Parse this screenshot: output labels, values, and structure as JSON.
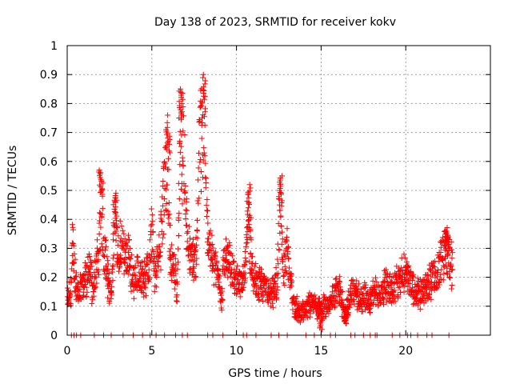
{
  "chart_data": {
    "type": "scatter",
    "title": "Day 138 of 2023, SRMTID for receiver kokv",
    "xlabel": "GPS time / hours",
    "ylabel": "SRMTID / TECUs",
    "xlim": [
      0,
      25
    ],
    "ylim": [
      0,
      1
    ],
    "grid": true,
    "marker": "+",
    "marker_color": "#ff0000",
    "x_ticks": [
      0,
      5,
      10,
      15,
      20
    ],
    "y_ticks": [
      0,
      0.1,
      0.2,
      0.3,
      0.4,
      0.5,
      0.6,
      0.7,
      0.8,
      0.9,
      1
    ],
    "y_tick_labels": [
      "0",
      "0.1",
      "0.2",
      "0.3",
      "0.4",
      "0.5",
      "0.6",
      "0.7",
      "0.8",
      "0.9",
      "1"
    ],
    "series": [
      {
        "name": "SRMTID",
        "profile": [
          [
            0.0,
            0.13
          ],
          [
            0.2,
            0.14
          ],
          [
            0.3,
            0.32
          ],
          [
            0.45,
            0.22
          ],
          [
            0.6,
            0.15
          ],
          [
            0.9,
            0.17
          ],
          [
            1.1,
            0.2
          ],
          [
            1.3,
            0.24
          ],
          [
            1.5,
            0.16
          ],
          [
            1.7,
            0.22
          ],
          [
            1.85,
            0.3
          ],
          [
            2.0,
            0.48
          ],
          [
            2.2,
            0.3
          ],
          [
            2.4,
            0.2
          ],
          [
            2.6,
            0.13
          ],
          [
            2.8,
            0.4
          ],
          [
            3.0,
            0.32
          ],
          [
            3.3,
            0.3
          ],
          [
            3.6,
            0.27
          ],
          [
            3.9,
            0.2
          ],
          [
            4.2,
            0.22
          ],
          [
            4.5,
            0.19
          ],
          [
            4.8,
            0.24
          ],
          [
            5.0,
            0.36
          ],
          [
            5.2,
            0.2
          ],
          [
            5.4,
            0.27
          ],
          [
            5.6,
            0.4
          ],
          [
            5.8,
            0.55
          ],
          [
            5.95,
            0.63
          ],
          [
            6.1,
            0.28
          ],
          [
            6.3,
            0.25
          ],
          [
            6.5,
            0.16
          ],
          [
            6.7,
            0.75
          ],
          [
            6.9,
            0.6
          ],
          [
            7.1,
            0.35
          ],
          [
            7.3,
            0.29
          ],
          [
            7.6,
            0.25
          ],
          [
            7.8,
            0.62
          ],
          [
            8.05,
            0.75
          ],
          [
            8.3,
            0.32
          ],
          [
            8.6,
            0.26
          ],
          [
            8.9,
            0.21
          ],
          [
            9.1,
            0.12
          ],
          [
            9.3,
            0.28
          ],
          [
            9.6,
            0.25
          ],
          [
            9.9,
            0.2
          ],
          [
            10.2,
            0.18
          ],
          [
            10.5,
            0.22
          ],
          [
            10.7,
            0.4
          ],
          [
            10.9,
            0.24
          ],
          [
            11.2,
            0.19
          ],
          [
            11.5,
            0.18
          ],
          [
            11.8,
            0.16
          ],
          [
            12.1,
            0.14
          ],
          [
            12.4,
            0.2
          ],
          [
            12.6,
            0.45
          ],
          [
            12.8,
            0.24
          ],
          [
            13.0,
            0.3
          ],
          [
            13.2,
            0.18
          ],
          [
            13.4,
            0.11
          ],
          [
            13.7,
            0.08
          ],
          [
            14.0,
            0.09
          ],
          [
            14.3,
            0.11
          ],
          [
            14.6,
            0.12
          ],
          [
            14.9,
            0.09
          ],
          [
            15.2,
            0.11
          ],
          [
            15.5,
            0.1
          ],
          [
            15.8,
            0.16
          ],
          [
            16.1,
            0.15
          ],
          [
            16.4,
            0.07
          ],
          [
            16.7,
            0.14
          ],
          [
            17.0,
            0.15
          ],
          [
            17.3,
            0.13
          ],
          [
            17.6,
            0.14
          ],
          [
            17.9,
            0.13
          ],
          [
            18.2,
            0.15
          ],
          [
            18.5,
            0.14
          ],
          [
            18.8,
            0.18
          ],
          [
            19.1,
            0.16
          ],
          [
            19.4,
            0.18
          ],
          [
            19.7,
            0.2
          ],
          [
            20.0,
            0.23
          ],
          [
            20.3,
            0.18
          ],
          [
            20.6,
            0.16
          ],
          [
            20.9,
            0.15
          ],
          [
            21.2,
            0.17
          ],
          [
            21.5,
            0.19
          ],
          [
            21.8,
            0.21
          ],
          [
            22.1,
            0.26
          ],
          [
            22.4,
            0.31
          ],
          [
            22.6,
            0.25
          ],
          [
            22.8,
            0.24
          ]
        ],
        "spikes": [
          [
            2.0,
            0.57
          ],
          [
            2.85,
            0.49
          ],
          [
            5.95,
            0.71
          ],
          [
            6.7,
            0.85
          ],
          [
            8.05,
            0.9
          ],
          [
            10.75,
            0.52
          ],
          [
            12.6,
            0.55
          ],
          [
            14.95,
            0.02
          ],
          [
            16.5,
            0.04
          ],
          [
            22.4,
            0.36
          ]
        ],
        "zero_hours": [
          0.25,
          0.4,
          0.55,
          0.8,
          1.6,
          2.15,
          2.6,
          3.3,
          3.9,
          4.45,
          4.9,
          5.25,
          5.75,
          6.4,
          6.8,
          7.1,
          8.3,
          8.6,
          9.2,
          10.4,
          10.6,
          11.15,
          12.05,
          12.5,
          13.0,
          14.1,
          14.6,
          15.0,
          15.55,
          15.85,
          16.75,
          17.0,
          17.5,
          17.9,
          18.2,
          18.3,
          19.2,
          19.65,
          20.1,
          20.3,
          20.7,
          21.25,
          21.55,
          22.55
        ]
      }
    ]
  }
}
